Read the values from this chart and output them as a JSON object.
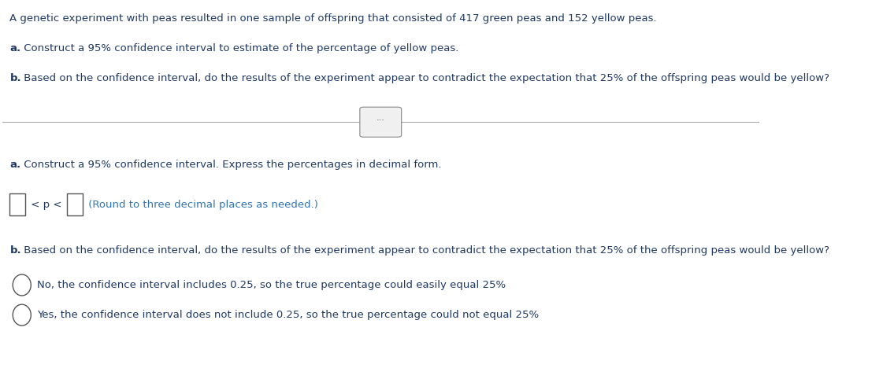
{
  "bg_color": "#ffffff",
  "blue_dark": "#1f3864",
  "blue_mid": "#2e75b6",
  "line1": "A genetic experiment with peas resulted in one sample of offspring that consisted of 417 green peas and 152 yellow peas.",
  "line2_bold": "a.",
  "line2_rest": " Construct a 95% confidence interval to estimate of the percentage of yellow peas.",
  "line3_bold": "b.",
  "line3_rest": " Based on the confidence interval, do the results of the experiment appear to contradict the expectation that 25% of the offspring peas would be yellow?",
  "section_a_label": "a.",
  "section_a_text": " Construct a 95% confidence interval. Express the percentages in decimal form.",
  "round_note": " (Round to three decimal places as needed.)",
  "section_b_label": "b.",
  "section_b_text": " Based on the confidence interval, do the results of the experiment appear to contradict the expectation that 25% of the offspring peas would be yellow?",
  "option1": "No, the confidence interval includes 0.25, so the true percentage could easily equal 25%",
  "option2": "Yes, the confidence interval does not include 0.25, so the true percentage could not equal 25%",
  "figsize": [
    11.35,
    4.82
  ],
  "dpi": 100
}
